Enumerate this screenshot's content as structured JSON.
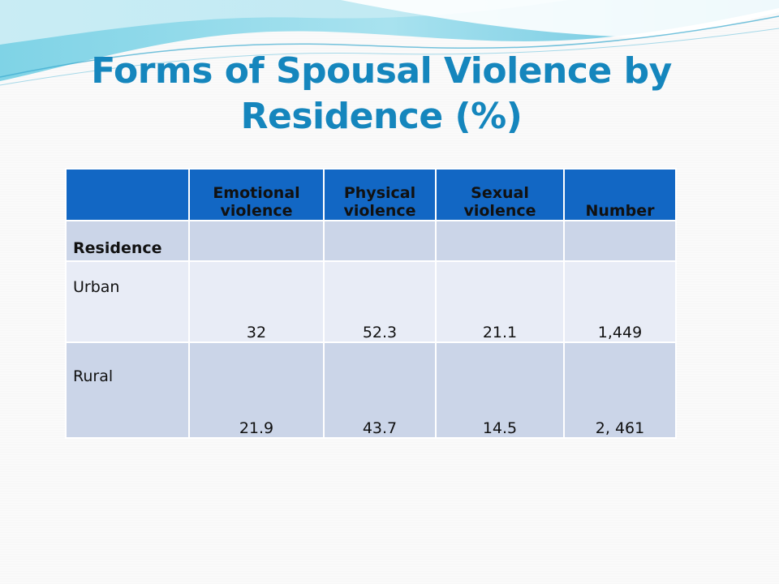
{
  "title": {
    "line1": "Forms of Spousal Violence by",
    "line2": "Residence (%)"
  },
  "table": {
    "headers": [
      "",
      "Emotional violence",
      "Physical violence",
      "Sexual violence",
      "Number"
    ],
    "group_label": "Residence",
    "rows": [
      {
        "label": "Urban",
        "emotional": "32",
        "physical": "52.3",
        "sexual": "21.1",
        "number": "1,449"
      },
      {
        "label": "Rural",
        "emotional": "21.9",
        "physical": "43.7",
        "sexual": "14.5",
        "number": "2, 461"
      }
    ]
  },
  "colors": {
    "title": "#1586bd",
    "header_bg": "#1267c4",
    "row_dark": "#cbd5e8",
    "row_light": "#e8ecf6"
  }
}
